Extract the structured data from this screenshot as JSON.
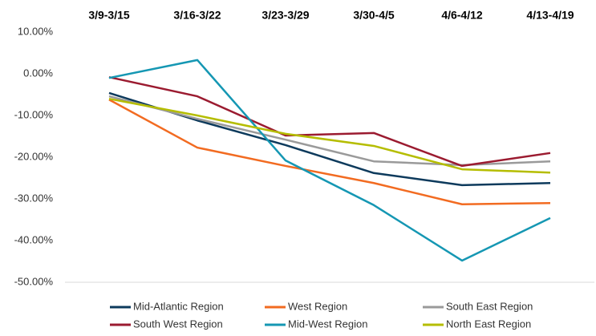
{
  "chart_data": {
    "type": "line",
    "categories": [
      "3/9-3/15",
      "3/16-3/22",
      "3/23-3/29",
      "3/30-4/5",
      "4/6-4/12",
      "4/13-4/19"
    ],
    "series": [
      {
        "name": "Mid-Atlantic Region",
        "color": "#0d3a5c",
        "values": [
          -4.6,
          -11.2,
          -17.1,
          -23.8,
          -26.7,
          -26.2
        ]
      },
      {
        "name": "West Region",
        "color": "#f26b21",
        "values": [
          -6.2,
          -17.7,
          -22.1,
          -26.2,
          -31.3,
          -31.0
        ]
      },
      {
        "name": "South East Region",
        "color": "#9a9a9a",
        "values": [
          -5.4,
          -10.8,
          -15.8,
          -21.0,
          -21.9,
          -21.0
        ]
      },
      {
        "name": "South West Region",
        "color": "#9b1b30",
        "values": [
          -0.8,
          -5.4,
          -14.8,
          -14.2,
          -22.1,
          -19.0
        ]
      },
      {
        "name": "Mid-West Region",
        "color": "#1597b3",
        "values": [
          -1.0,
          3.3,
          -20.8,
          -31.5,
          -44.8,
          -34.6
        ]
      },
      {
        "name": "North East Region",
        "color": "#b5bd00",
        "values": [
          -6.0,
          -10.0,
          -14.4,
          -17.3,
          -22.9,
          -23.7
        ]
      }
    ],
    "ylim": [
      -50,
      10
    ],
    "yticks": [
      {
        "value": 10,
        "label": "10.00%"
      },
      {
        "value": 0,
        "label": "0.00%"
      },
      {
        "value": -10,
        "label": "-10.00%"
      },
      {
        "value": -20,
        "label": "-20.00%"
      },
      {
        "value": -30,
        "label": "-30.00%"
      },
      {
        "value": -40,
        "label": "-40.00%"
      },
      {
        "value": -50,
        "label": "-50.00%"
      }
    ],
    "grid": false
  }
}
